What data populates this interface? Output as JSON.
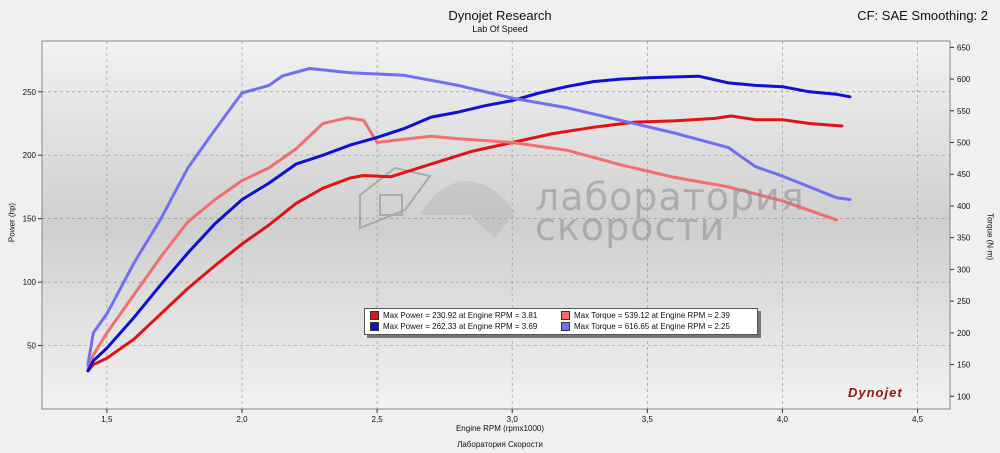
{
  "header": {
    "title": "Dynojet Research",
    "subtitle": "Lab Of Speed",
    "right_info": "CF: SAE Smoothing: 2"
  },
  "watermark": {
    "line1": "лаборатория",
    "line2": "скорости"
  },
  "logo_text": "Dynojet",
  "footer_label": "Лаборатория Скорости",
  "colors": {
    "red": "#e01414",
    "blue": "#1010d0",
    "light_red": "#f07070",
    "light_blue": "#7070f0"
  },
  "chart_data": {
    "type": "line",
    "title": "Dynojet Research",
    "subtitle": "Lab Of Speed",
    "xlabel": "Engine RPM (rpmx1000)",
    "ylabel": "Power (hp)",
    "y2label": "Torque (N·m)",
    "xlim": [
      1.26,
      4.62
    ],
    "ylim": [
      0,
      290
    ],
    "y2lim": [
      80,
      660
    ],
    "xticks": [
      "1,5",
      "2,0",
      "2,5",
      "3,0",
      "3,5",
      "4,0",
      "4,5"
    ],
    "xtick_values": [
      1.5,
      2.0,
      2.5,
      3.0,
      3.5,
      4.0,
      4.5
    ],
    "yticks": [
      "50",
      "100",
      "150",
      "200",
      "250"
    ],
    "ytick_values": [
      50,
      100,
      150,
      200,
      250
    ],
    "y2ticks": [
      "100",
      "150",
      "200",
      "250",
      "300",
      "350",
      "400",
      "450",
      "500",
      "550",
      "600",
      "650"
    ],
    "y2tick_values": [
      100,
      150,
      200,
      250,
      300,
      350,
      400,
      450,
      500,
      550,
      600,
      650
    ],
    "grid": true,
    "legend_position": "center-bottom",
    "legend": [
      {
        "text": "Max Power = 230.92 at Engine RPM = 3.81",
        "color": "#e01414"
      },
      {
        "text": "Max Torque = 539.12 at Engine RPM = 2.39",
        "color": "#f07070"
      },
      {
        "text": "Max Power = 262.33 at Engine RPM = 3.69",
        "color": "#1010d0"
      },
      {
        "text": "Max Torque = 616.65 at Engine RPM = 2.25",
        "color": "#7070f0"
      }
    ],
    "series": [
      {
        "axis": "left",
        "color": "#e01414",
        "x": [
          1.43,
          1.45,
          1.5,
          1.6,
          1.7,
          1.8,
          1.9,
          2.0,
          2.1,
          2.2,
          2.3,
          2.4,
          2.45,
          2.55,
          2.7,
          2.85,
          3.0,
          3.15,
          3.3,
          3.45,
          3.6,
          3.75,
          3.81,
          3.9,
          4.0,
          4.1,
          4.22
        ],
        "y": [
          30,
          35,
          40,
          55,
          75,
          95,
          113,
          130,
          145,
          162,
          174,
          182,
          184,
          183,
          193,
          203,
          210,
          217,
          222,
          226,
          227,
          229,
          230.9,
          228,
          228,
          225,
          223
        ]
      },
      {
        "axis": "right",
        "color": "#f07070",
        "x": [
          1.43,
          1.45,
          1.5,
          1.6,
          1.7,
          1.8,
          1.9,
          2.0,
          2.1,
          2.2,
          2.3,
          2.39,
          2.45,
          2.5,
          2.6,
          2.7,
          2.8,
          3.0,
          3.2,
          3.4,
          3.6,
          3.8,
          4.0,
          4.1,
          4.2
        ],
        "y": [
          145,
          165,
          200,
          260,
          320,
          375,
          410,
          440,
          460,
          490,
          530,
          539,
          535,
          500,
          505,
          510,
          506,
          500,
          488,
          465,
          445,
          430,
          408,
          393,
          378
        ]
      },
      {
        "axis": "left",
        "color": "#1010d0",
        "x": [
          1.43,
          1.45,
          1.5,
          1.6,
          1.7,
          1.8,
          1.9,
          2.0,
          2.1,
          2.2,
          2.3,
          2.4,
          2.5,
          2.6,
          2.7,
          2.8,
          2.9,
          3.0,
          3.1,
          3.2,
          3.3,
          3.4,
          3.5,
          3.69,
          3.8,
          3.9,
          4.0,
          4.1,
          4.2,
          4.25
        ],
        "y": [
          30,
          38,
          48,
          72,
          98,
          123,
          146,
          165,
          178,
          193,
          200,
          208,
          214,
          221,
          230,
          234,
          239,
          243,
          249,
          254,
          258,
          260,
          261,
          262.3,
          257,
          255,
          254,
          250,
          248,
          246
        ]
      },
      {
        "axis": "right",
        "color": "#7070f0",
        "x": [
          1.43,
          1.45,
          1.5,
          1.6,
          1.7,
          1.8,
          1.9,
          2.0,
          2.1,
          2.15,
          2.25,
          2.4,
          2.5,
          2.6,
          2.8,
          3.0,
          3.2,
          3.4,
          3.6,
          3.8,
          3.9,
          4.0,
          4.1,
          4.2,
          4.25
        ],
        "y": [
          150,
          200,
          230,
          310,
          380,
          460,
          520,
          578,
          590,
          605,
          616.6,
          610,
          608,
          606,
          590,
          570,
          555,
          535,
          515,
          492,
          462,
          447,
          430,
          413,
          410
        ]
      }
    ]
  }
}
